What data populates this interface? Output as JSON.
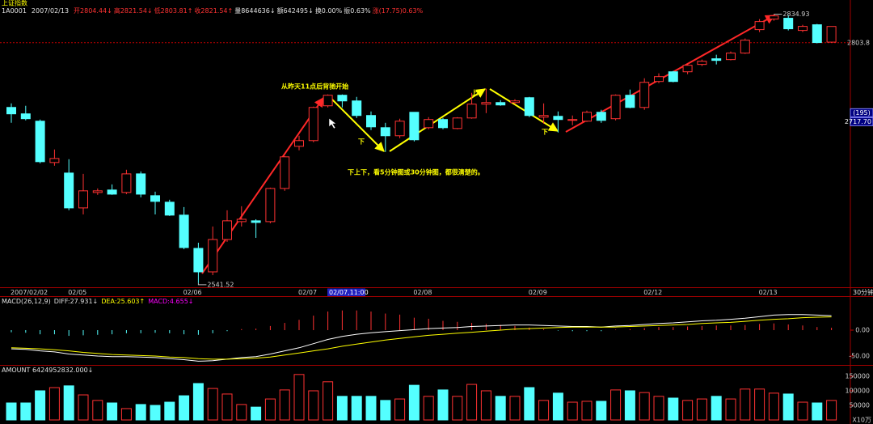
{
  "header": {
    "name": "上证指数",
    "code": "1A0001",
    "date": "2007/02/13",
    "fields": [
      "开2804.44↓",
      "高2821.54↓",
      "低2803.81↑",
      "收2821.54↑",
      "量8644636↓",
      "额642495↓",
      "换0.00%",
      "振0.63%",
      "涨(17.75)0.63%"
    ],
    "field_colors": [
      "#ff3232",
      "#ff3232",
      "#ff3232",
      "#ff3232",
      "#e0e0e0",
      "#e0e0e0",
      "#e0e0e0",
      "#e0e0e0",
      "#ff3232"
    ]
  },
  "chart_data": [
    {
      "type": "candlestick",
      "categories": [
        "2007/02/02",
        null,
        null,
        null,
        "02/05",
        null,
        null,
        null,
        null,
        null,
        null,
        null,
        "02/06",
        null,
        null,
        null,
        null,
        null,
        null,
        null,
        "02/07",
        null,
        null,
        null,
        null,
        null,
        null,
        null,
        "02/08",
        null,
        null,
        null,
        null,
        null,
        null,
        null,
        "02/09",
        null,
        null,
        null,
        null,
        null,
        null,
        null,
        "02/12",
        null,
        null,
        null,
        null,
        null,
        null,
        null,
        "02/13",
        null,
        null,
        null,
        null,
        null
      ],
      "open": [
        2733.2,
        2726.2,
        2718.2,
        2673.1,
        2661.6,
        2623.6,
        2640.4,
        2643.1,
        2640.4,
        2660.7,
        2636.9,
        2629.8,
        2615.7,
        2579.4,
        2553.8,
        2589.1,
        2608.6,
        2609.5,
        2608.6,
        2644.8,
        2690.8,
        2697.0,
        2735.0,
        2746.5,
        2740.3,
        2724.4,
        2711.1,
        2702.3,
        2727.9,
        2711.1,
        2720.0,
        2710.2,
        2721.7,
        2736.8,
        2738.5,
        2738.5,
        2743.8,
        2722.6,
        2723.5,
        2719.1,
        2718.2,
        2727.9,
        2720.9,
        2746.5,
        2733.2,
        2761.5,
        2772.1,
        2772.1,
        2780.1,
        2786.3,
        2785.4,
        2792.5,
        2818.1,
        2829.6,
        2830.5,
        2817.2,
        2823.4,
        2804.44
      ],
      "high": [
        2737.6,
        2735.0,
        2720.0,
        2687.3,
        2676.7,
        2660.7,
        2644.8,
        2649.2,
        2665.2,
        2663.4,
        2641.3,
        2632.5,
        2624.5,
        2585.6,
        2603.3,
        2621.0,
        2625.4,
        2611.2,
        2645.7,
        2680.2,
        2702.3,
        2734.1,
        2747.4,
        2747.4,
        2744.7,
        2728.8,
        2716.4,
        2720.9,
        2727.9,
        2722.6,
        2721.7,
        2722.6,
        2749.1,
        2753.6,
        2741.2,
        2742.1,
        2744.7,
        2737.6,
        2728.8,
        2724.4,
        2729.7,
        2730.6,
        2747.4,
        2752.7,
        2765.0,
        2770.4,
        2773.0,
        2781.0,
        2785.4,
        2790.7,
        2794.2,
        2808.4,
        2829.6,
        2834.93,
        2834.0,
        2823.4,
        2824.3,
        2821.54
      ],
      "low": [
        2716.4,
        2719.1,
        2672.2,
        2669.6,
        2621.0,
        2616.5,
        2637.8,
        2637.8,
        2638.6,
        2635.1,
        2616.5,
        2614.8,
        2578.5,
        2541.52,
        2550.2,
        2586.5,
        2603.3,
        2590.9,
        2606.8,
        2642.2,
        2686.4,
        2695.2,
        2733.2,
        2733.2,
        2721.7,
        2708.5,
        2684.6,
        2699.6,
        2696.1,
        2709.4,
        2709.4,
        2709.4,
        2720.9,
        2727.0,
        2735.0,
        2736.8,
        2722.6,
        2715.5,
        2705.8,
        2713.8,
        2717.3,
        2716.4,
        2719.1,
        2732.3,
        2730.6,
        2759.7,
        2760.6,
        2769.5,
        2778.3,
        2780.1,
        2784.5,
        2791.6,
        2815.4,
        2827.8,
        2817.2,
        2815.4,
        2803.1,
        2803.81
      ],
      "close": [
        2726.2,
        2720.9,
        2674.0,
        2677.5,
        2623.6,
        2642.2,
        2642.2,
        2638.6,
        2660.7,
        2638.6,
        2630.7,
        2615.7,
        2580.3,
        2553.8,
        2589.1,
        2609.5,
        2611.2,
        2607.7,
        2644.8,
        2679.3,
        2697.0,
        2733.2,
        2746.5,
        2740.3,
        2724.4,
        2712.0,
        2702.3,
        2718.2,
        2697.9,
        2720.0,
        2711.1,
        2721.7,
        2736.8,
        2738.5,
        2735.9,
        2740.3,
        2724.4,
        2724.4,
        2720.0,
        2720.0,
        2727.9,
        2719.1,
        2746.5,
        2733.2,
        2760.6,
        2766.8,
        2761.5,
        2779.2,
        2783.6,
        2784.5,
        2792.5,
        2806.6,
        2826.9,
        2833.1,
        2819.0,
        2821.6,
        2804.0,
        2821.54
      ],
      "ylim": [
        2537,
        2846
      ],
      "yticks": [
        2803.8
      ],
      "grid": true,
      "up_color": "#ff3232",
      "down_color": "#54ffff",
      "high_label": 2834.93,
      "low_label": 2541.52,
      "cursor": {
        "index_label": "(195)",
        "price": {
          "value": 2717.7,
          "label": "2717.70"
        },
        "time": "02/07,11:00"
      },
      "period": "30分钟",
      "annotations": {
        "title": "从昨天11点后背驰开始",
        "note": "下上下，看5分钟图或30分钟图，都很清楚的。",
        "marks": [
          "下",
          "上",
          "下"
        ]
      }
    },
    {
      "type": "macd",
      "legend": [
        "MACD(26,12,9)",
        "DIFF:27.931↓",
        "DEA:25.603↑",
        "MACD:4.655↓"
      ],
      "legend_colors": [
        "#e0e0e0",
        "#e0e0e0",
        "#ffff00",
        "#ff00ff"
      ],
      "series": [
        {
          "kind": "bar",
          "values": [
            -4,
            -5,
            -8,
            -8,
            -11,
            -10,
            -9,
            -8,
            -6,
            -6,
            -5,
            -6,
            -8,
            -9,
            -6,
            -2,
            2,
            3,
            8,
            14,
            20,
            28,
            36,
            38,
            38,
            36,
            32,
            30,
            24,
            22,
            18,
            16,
            14,
            12,
            10,
            8,
            5,
            2,
            -1,
            -2,
            -2,
            -2,
            1,
            2,
            4,
            6,
            6,
            7,
            8,
            9,
            9,
            10,
            12,
            13,
            11,
            9,
            6,
            4.655
          ]
        },
        {
          "kind": "line",
          "color": "#ffffff",
          "values": [
            -36,
            -37,
            -40,
            -42,
            -46,
            -48,
            -50,
            -51,
            -51,
            -52,
            -53,
            -55,
            -57,
            -60,
            -59,
            -56,
            -53,
            -51,
            -46,
            -40,
            -34,
            -26,
            -18,
            -12,
            -8,
            -5,
            -3,
            -1,
            1,
            3,
            4,
            5,
            7,
            8,
            9,
            10,
            10,
            9,
            8,
            7,
            7,
            6,
            8,
            9,
            11,
            13,
            14,
            16,
            18,
            19,
            21,
            23,
            26,
            29,
            30,
            30,
            29,
            27.931
          ]
        },
        {
          "kind": "line",
          "color": "#ffff00",
          "values": [
            -34,
            -35,
            -36,
            -38,
            -40,
            -43,
            -45,
            -47,
            -48,
            -49,
            -50,
            -52,
            -53,
            -55,
            -56,
            -56,
            -55,
            -54,
            -52,
            -48,
            -44,
            -40,
            -36,
            -31,
            -27,
            -23,
            -19,
            -16,
            -13,
            -10,
            -8,
            -6,
            -4,
            -2,
            0,
            2,
            3,
            4,
            5,
            6,
            6,
            6,
            6,
            7,
            8,
            9,
            10,
            11,
            13,
            14,
            15,
            17,
            19,
            21,
            22,
            24,
            25,
            25.603
          ]
        }
      ],
      "ylim": [
        -65.6,
        62.5
      ],
      "yticks": [
        {
          "value": 0,
          "label": "0.00"
        },
        {
          "value": -50,
          "label": "-50.00"
        }
      ]
    },
    {
      "type": "bar",
      "legend": [
        "AMOUNT 6424952832.000↓"
      ],
      "values": [
        58300,
        58300,
        100000,
        111000,
        117000,
        86000,
        67000,
        58300,
        39000,
        53000,
        50000,
        61000,
        83000,
        125000,
        108000,
        89000,
        53000,
        44000,
        72000,
        103000,
        156000,
        100000,
        131000,
        81000,
        81000,
        81000,
        67000,
        72000,
        119000,
        81000,
        103000,
        81000,
        122000,
        100000,
        81000,
        81000,
        111000,
        67000,
        92000,
        61000,
        64000,
        64000,
        103000,
        100000,
        94000,
        81000,
        75000,
        67000,
        72000,
        81000,
        72000,
        106000,
        106000,
        92000,
        89000,
        61000,
        58300,
        67000
      ],
      "ylim": [
        0,
        186000
      ],
      "yticks": [
        150000,
        100000,
        50000
      ],
      "unit_label": "X10万"
    }
  ]
}
